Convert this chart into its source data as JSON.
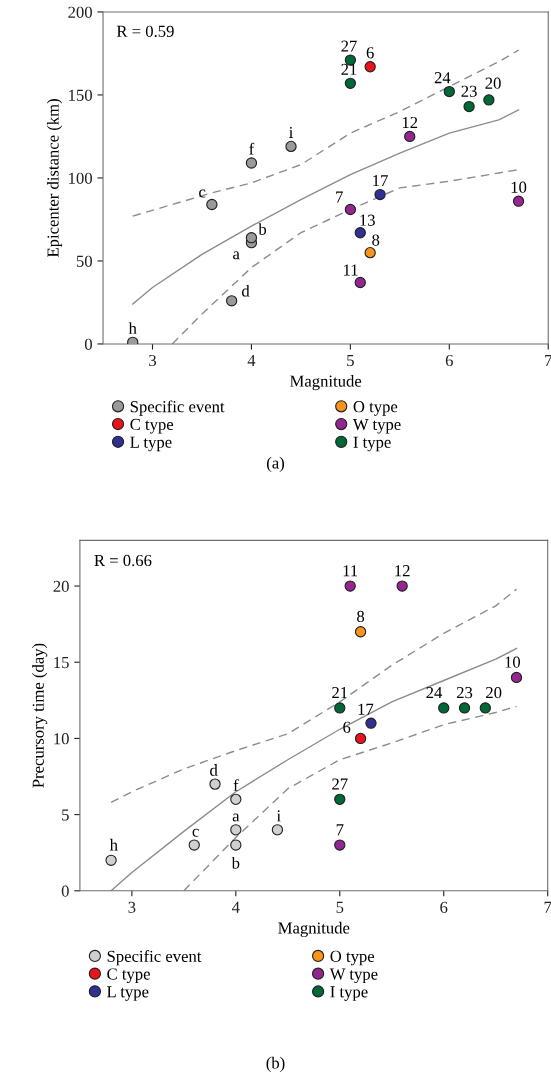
{
  "chart_data": [
    {
      "type": "scatter",
      "xlabel": "Magnitude",
      "ylabel": "Epicenter distance (km)",
      "xlim": [
        2.5,
        7
      ],
      "ylim": [
        0,
        200
      ],
      "xticks": [
        3,
        4,
        5,
        6,
        7
      ],
      "yticks": [
        0,
        50,
        100,
        150,
        200
      ],
      "grid": false,
      "legend": "bottom",
      "marker": "circle",
      "series": [
        {
          "name": "Specific event",
          "color": "#9a9a9a",
          "x": [
            2.8,
            3.6,
            4.0,
            4.4,
            4.0,
            4.0,
            3.8
          ],
          "values": [
            1,
            84,
            109,
            119,
            61,
            64,
            26
          ]
        },
        {
          "name": "C type",
          "color": "#e8141c",
          "x": [
            5.2
          ],
          "values": [
            167
          ]
        },
        {
          "name": "L type",
          "color": "#2e3192",
          "x": [
            5.3,
            5.1
          ],
          "values": [
            90,
            67
          ]
        },
        {
          "name": "O type",
          "color": "#f7941d",
          "x": [
            5.2
          ],
          "values": [
            55
          ]
        },
        {
          "name": "W type",
          "color": "#93278f",
          "x": [
            5.0,
            5.1,
            5.6,
            6.7
          ],
          "values": [
            81,
            37,
            125,
            86
          ]
        },
        {
          "name": "I type",
          "color": "#006837",
          "x": [
            5.0,
            5.0,
            6.0,
            6.2,
            6.4
          ],
          "values": [
            171,
            157,
            152,
            143,
            147
          ]
        },
        {
          "type": "line",
          "color": "#8c8c8c",
          "line_style": "solid",
          "marker": "none",
          "x": [
            2.8,
            3.0,
            3.5,
            4.0,
            4.5,
            5.0,
            5.5,
            6.0,
            6.5,
            6.7
          ],
          "values": [
            24,
            34,
            54,
            71,
            87,
            102,
            115,
            127,
            135,
            141
          ]
        },
        {
          "type": "line",
          "color": "#8c8c8c",
          "line_style": "dashed",
          "marker": "none",
          "x": [
            2.8,
            3.6,
            4.0,
            4.5,
            5.0,
            5.5,
            6.0,
            6.5,
            6.7
          ],
          "values": [
            77,
            91,
            97,
            108,
            127,
            140,
            155,
            170,
            177
          ]
        },
        {
          "type": "line",
          "color": "#8c8c8c",
          "line_style": "dashed",
          "marker": "none",
          "x": [
            3.2,
            3.5,
            4.0,
            4.5,
            5.0,
            5.5,
            6.0,
            6.5,
            6.7
          ],
          "values": [
            0,
            18,
            46,
            67,
            81,
            94,
            98,
            103,
            105
          ]
        }
      ],
      "annotations": [
        "R = 0.59",
        "(a)",
        {
          "text": "h",
          "x": 2.8,
          "y": 1
        },
        {
          "text": "c",
          "x": 3.6,
          "y": 84
        },
        {
          "text": "f",
          "x": 4.0,
          "y": 109
        },
        {
          "text": "i",
          "x": 4.4,
          "y": 119
        },
        {
          "text": "b",
          "x": 4.0,
          "y": 64
        },
        {
          "text": "a",
          "x": 4.0,
          "y": 61
        },
        {
          "text": "d",
          "x": 3.8,
          "y": 26
        },
        {
          "text": "6",
          "x": 5.2,
          "y": 167
        },
        {
          "text": "17",
          "x": 5.3,
          "y": 90
        },
        {
          "text": "13",
          "x": 5.1,
          "y": 67
        },
        {
          "text": "8",
          "x": 5.2,
          "y": 55
        },
        {
          "text": "7",
          "x": 5.0,
          "y": 81
        },
        {
          "text": "11",
          "x": 5.1,
          "y": 37
        },
        {
          "text": "12",
          "x": 5.6,
          "y": 125
        },
        {
          "text": "10",
          "x": 6.7,
          "y": 86
        },
        {
          "text": "27",
          "x": 5.0,
          "y": 171
        },
        {
          "text": "21",
          "x": 5.0,
          "y": 157
        },
        {
          "text": "24",
          "x": 6.0,
          "y": 152
        },
        {
          "text": "23",
          "x": 6.2,
          "y": 143
        },
        {
          "text": "20",
          "x": 6.4,
          "y": 147
        }
      ]
    },
    {
      "type": "scatter",
      "xlabel": "Magnitude",
      "ylabel": "Precursory time (day)",
      "xlim": [
        2.5,
        7
      ],
      "ylim": [
        0,
        23
      ],
      "xticks": [
        3,
        4,
        5,
        6,
        7
      ],
      "yticks": [
        0,
        5,
        10,
        15,
        20
      ],
      "grid": false,
      "legend": "bottom",
      "marker": "circle",
      "series": [
        {
          "name": "Specific event",
          "color": "#d0d0d0",
          "x": [
            2.8,
            3.6,
            4.0,
            4.4,
            4.0,
            4.0,
            3.8
          ],
          "values": [
            2,
            3,
            6,
            4,
            3,
            4,
            7
          ]
        },
        {
          "name": "C type",
          "color": "#e8141c",
          "x": [
            5.2
          ],
          "values": [
            10
          ]
        },
        {
          "name": "L type",
          "color": "#2e3192",
          "x": [
            5.3
          ],
          "values": [
            11
          ]
        },
        {
          "name": "O type",
          "color": "#f7941d",
          "x": [
            5.2
          ],
          "values": [
            17
          ]
        },
        {
          "name": "W type",
          "color": "#93278f",
          "x": [
            5.0,
            5.1,
            5.6,
            6.7
          ],
          "values": [
            3,
            20,
            20,
            14
          ]
        },
        {
          "name": "I type",
          "color": "#006837",
          "x": [
            5.0,
            5.0,
            6.0,
            6.2,
            6.4
          ],
          "values": [
            6,
            12,
            12,
            12,
            12
          ]
        },
        {
          "type": "line",
          "color": "#8c8c8c",
          "line_style": "solid",
          "marker": "none",
          "x": [
            2.8,
            3.0,
            3.5,
            4.0,
            4.5,
            5.0,
            5.5,
            6.0,
            6.5,
            6.7
          ],
          "values": [
            0,
            1.2,
            3.9,
            6.5,
            8.6,
            10.6,
            12.4,
            13.8,
            15.2,
            15.9
          ]
        },
        {
          "type": "line",
          "color": "#8c8c8c",
          "line_style": "dashed",
          "marker": "none",
          "x": [
            2.8,
            3.0,
            3.5,
            4.0,
            4.5,
            5.0,
            5.5,
            6.0,
            6.5,
            6.7
          ],
          "values": [
            5.8,
            6.5,
            8.0,
            9.2,
            10.3,
            12.4,
            14.8,
            16.9,
            18.7,
            19.8
          ]
        },
        {
          "type": "line",
          "color": "#8c8c8c",
          "line_style": "dashed",
          "marker": "none",
          "x": [
            3.5,
            4.0,
            4.5,
            5.0,
            5.5,
            6.0,
            6.5,
            6.7
          ],
          "values": [
            0,
            3.5,
            6.7,
            8.6,
            9.7,
            10.9,
            11.7,
            12.1
          ]
        }
      ],
      "annotations": [
        "R = 0.66",
        "(b)",
        {
          "text": "h",
          "x": 2.8,
          "y": 2
        },
        {
          "text": "c",
          "x": 3.6,
          "y": 3
        },
        {
          "text": "f",
          "x": 4.0,
          "y": 6
        },
        {
          "text": "i",
          "x": 4.4,
          "y": 4
        },
        {
          "text": "b",
          "x": 4.0,
          "y": 3
        },
        {
          "text": "a",
          "x": 4.0,
          "y": 4
        },
        {
          "text": "d",
          "x": 3.8,
          "y": 7
        },
        {
          "text": "6",
          "x": 5.2,
          "y": 10
        },
        {
          "text": "17",
          "x": 5.3,
          "y": 11
        },
        {
          "text": "8",
          "x": 5.2,
          "y": 17
        },
        {
          "text": "7",
          "x": 5.0,
          "y": 3
        },
        {
          "text": "11",
          "x": 5.1,
          "y": 20
        },
        {
          "text": "12",
          "x": 5.6,
          "y": 20
        },
        {
          "text": "10",
          "x": 6.7,
          "y": 14
        },
        {
          "text": "27",
          "x": 5.0,
          "y": 6
        },
        {
          "text": "21",
          "x": 5.0,
          "y": 12
        },
        {
          "text": "24",
          "x": 6.0,
          "y": 12
        },
        {
          "text": "23",
          "x": 6.2,
          "y": 12
        },
        {
          "text": "20",
          "x": 6.4,
          "y": 12
        }
      ]
    }
  ]
}
